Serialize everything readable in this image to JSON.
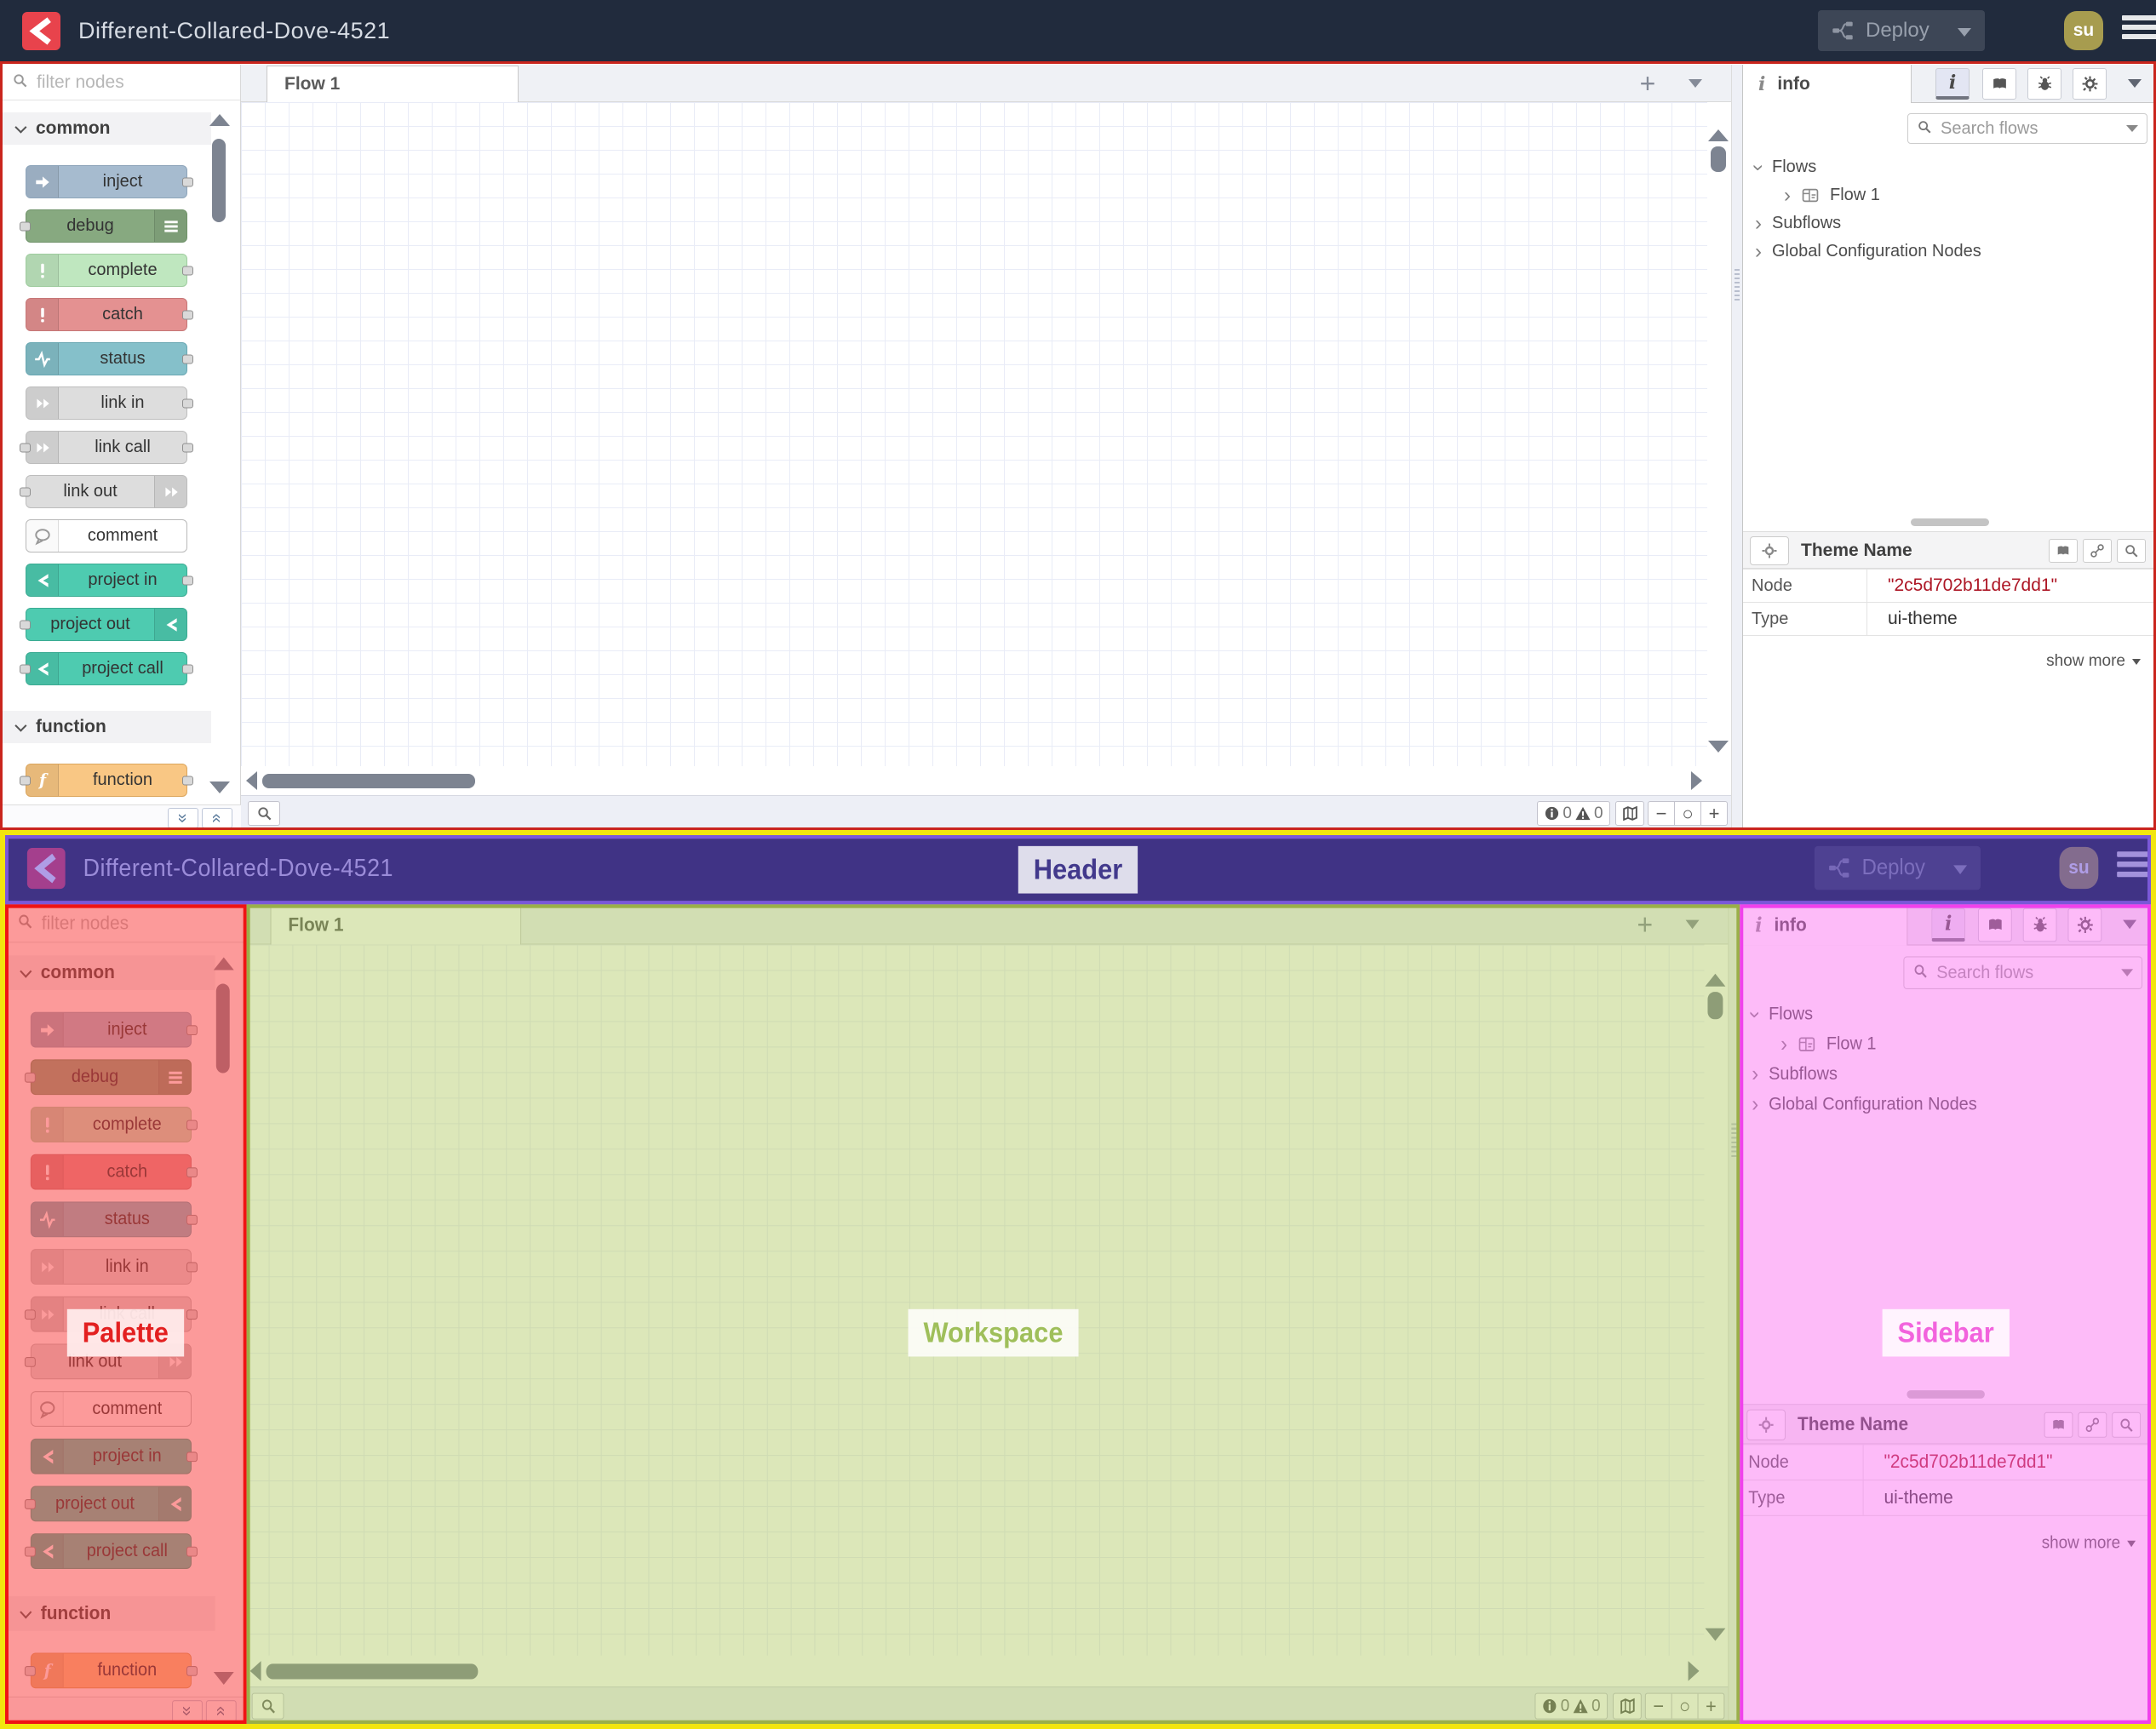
{
  "header": {
    "title": "Different-Collared-Dove-4521",
    "deploy": {
      "label": "Deploy"
    },
    "user_badge": "su"
  },
  "palette": {
    "filter_placeholder": "filter nodes",
    "categories": [
      {
        "label": "common",
        "nodes": [
          {
            "label": "inject",
            "color": "#a6bbcf",
            "border": "#8ea5ba",
            "icon": "inject-arrow",
            "icon_side": "left",
            "ports": "right"
          },
          {
            "label": "debug",
            "color": "#87a980",
            "border": "#70936a",
            "icon": "debug-bars",
            "icon_side": "right",
            "ports": "left"
          },
          {
            "label": "complete",
            "color": "#bfe7bf",
            "border": "#9fcc9f",
            "icon": "exclamation",
            "icon_side": "left",
            "ports": "right"
          },
          {
            "label": "catch",
            "color": "#e49191",
            "border": "#c67777",
            "icon": "exclamation",
            "icon_side": "left",
            "ports": "right"
          },
          {
            "label": "status",
            "color": "#85c0ca",
            "border": "#69a7b2",
            "icon": "status-pulse",
            "icon_side": "left",
            "ports": "right"
          },
          {
            "label": "link in",
            "color": "#dddddd",
            "border": "#bdbdbd",
            "icon": "link-arrow",
            "icon_side": "left",
            "ports": "right"
          },
          {
            "label": "link call",
            "color": "#dddddd",
            "border": "#bdbdbd",
            "icon": "link-arrow",
            "icon_side": "left",
            "ports": "both"
          },
          {
            "label": "link out",
            "color": "#dddddd",
            "border": "#bdbdbd",
            "icon": "link-arrow",
            "icon_side": "right",
            "ports": "left"
          },
          {
            "label": "comment",
            "color": "#ffffff",
            "border": "#b9b9b9",
            "icon": "comment-bubble",
            "icon_side": "left",
            "ports": "none"
          },
          {
            "label": "project in",
            "color": "#4ecbb0",
            "border": "#3cab93",
            "icon": "project-fork",
            "icon_side": "left",
            "ports": "right"
          },
          {
            "label": "project out",
            "color": "#4ecbb0",
            "border": "#3cab93",
            "icon": "project-fork",
            "icon_side": "right",
            "ports": "left"
          },
          {
            "label": "project call",
            "color": "#4ecbb0",
            "border": "#3cab93",
            "icon": "project-fork",
            "icon_side": "left",
            "ports": "both"
          }
        ]
      },
      {
        "label": "function",
        "nodes": [
          {
            "label": "function",
            "color": "#f9c784",
            "border": "#dba65e",
            "icon": "function-f",
            "icon_side": "left",
            "ports": "both"
          }
        ]
      }
    ]
  },
  "workspace": {
    "tab_label": "Flow 1",
    "add_flow_glyph": "+",
    "footer": {
      "info_count": "0",
      "warning_count": "0",
      "zoom_out": "−",
      "zoom_reset": "○",
      "zoom_in": "+"
    }
  },
  "sidebar": {
    "tab_label": "info",
    "search_placeholder": "Search flows",
    "tree": {
      "flows": "Flows",
      "flow1": "Flow 1",
      "subflows": "Subflows",
      "global_config": "Global Configuration Nodes"
    },
    "panel": {
      "title": "Theme Name",
      "rows": [
        {
          "label": "Node",
          "value": "\"2c5d702b11de7dd1\""
        },
        {
          "label": "Type",
          "value": "ui-theme"
        }
      ],
      "show_more": "show more"
    }
  },
  "annotations": {
    "header_label": "Header",
    "palette_label": "Palette",
    "workspace_label": "Workspace",
    "sidebar_label": "Sidebar"
  },
  "colors": {
    "header_bg": "#212b3d",
    "brand_red": "#e8434c",
    "content_outline_red": "#c9251d",
    "frame_yellow": "#f2e50e",
    "annotation_header": "#42398c",
    "annotation_palette": "#e32020",
    "annotation_workspace": "#9fbf5a",
    "annotation_sidebar": "#f263dd",
    "node_id_red": "#ad1625"
  }
}
